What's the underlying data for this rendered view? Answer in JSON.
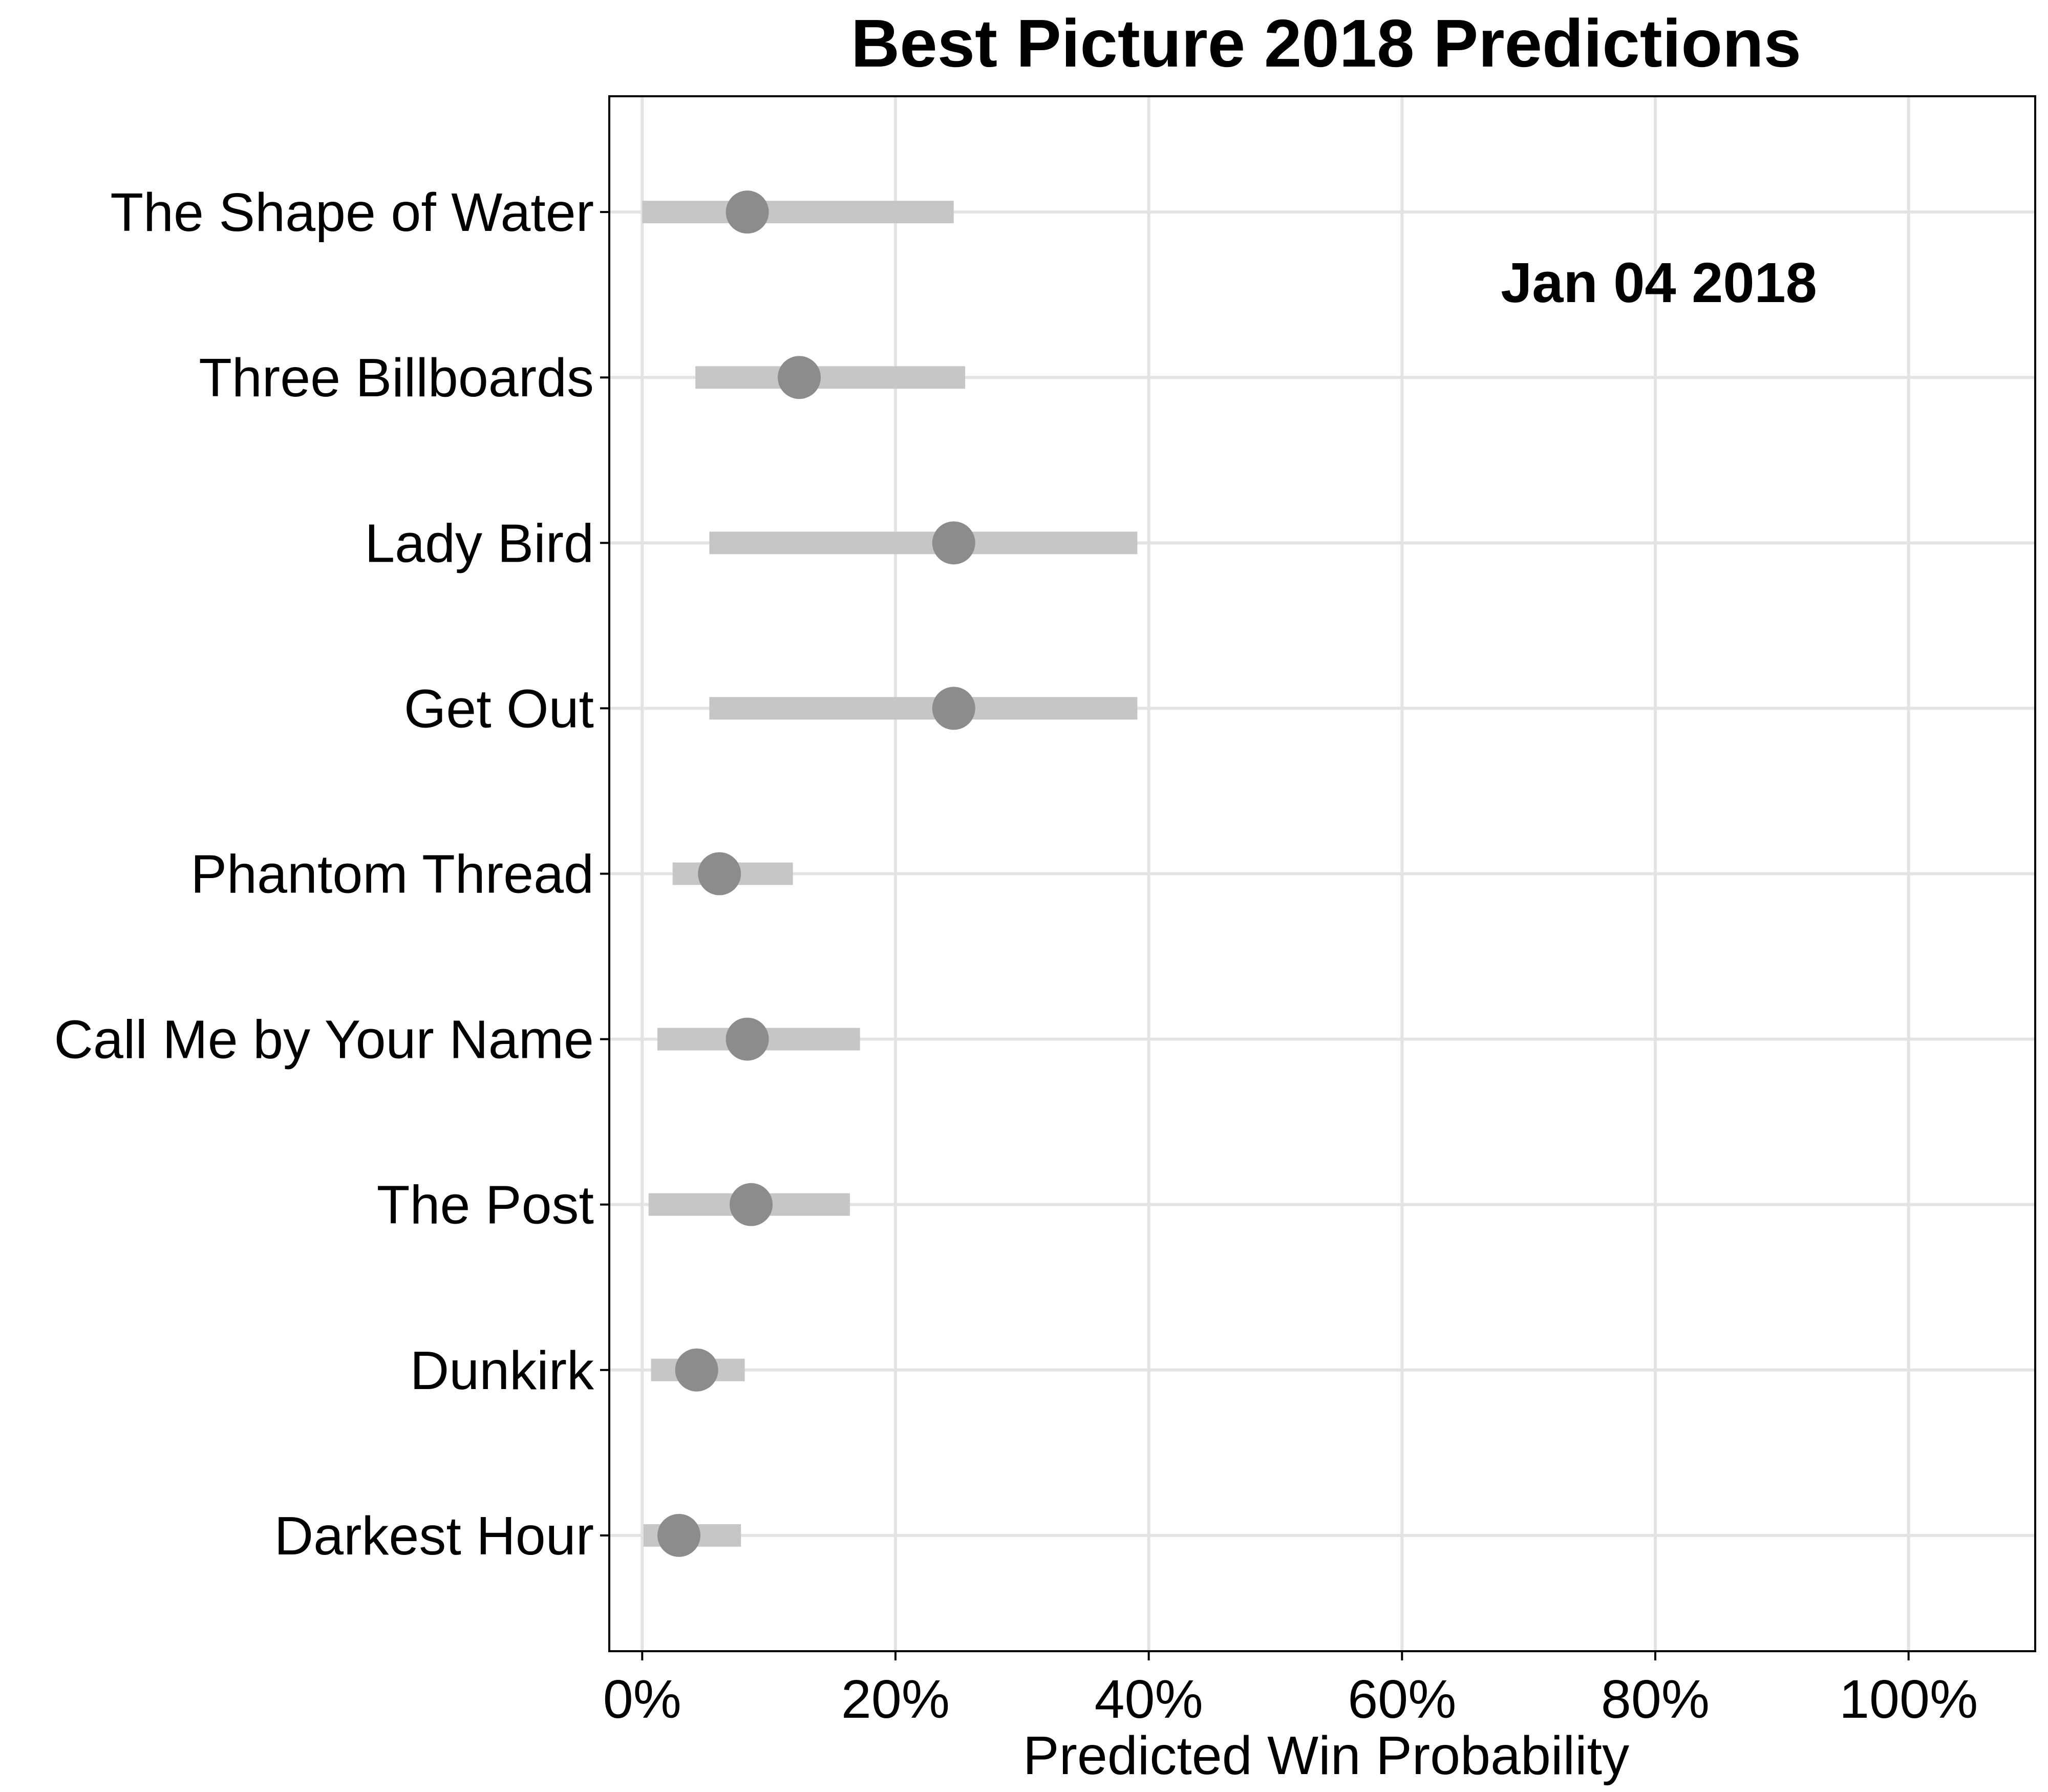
{
  "chart_data": {
    "type": "scatter",
    "title": "Best Picture 2018 Predictions",
    "xlabel": "Predicted Win Probability",
    "ylabel": "",
    "xlim": [
      -0.026,
      1.1
    ],
    "x_ticks": [
      0,
      0.2,
      0.4,
      0.6,
      0.8,
      1.0
    ],
    "x_tick_labels": [
      "0%",
      "20%",
      "40%",
      "60%",
      "80%",
      "100%"
    ],
    "grid": true,
    "legend": "none",
    "annotation": "Jan 04 2018",
    "colors": {
      "point": "#8c8c8c",
      "interval": "#c6c6c6",
      "grid": "#e3e3e3",
      "axis": "#000000"
    },
    "categories": [
      "The Shape of Water",
      "Three Billboards",
      "Lady Bird",
      "Get Out",
      "Phantom Thread",
      "Call Me by Your Name",
      "The Post",
      "Dunkirk",
      "Darkest Hour"
    ],
    "series": [
      {
        "values": [
          0.083,
          0.124,
          0.246,
          0.246,
          0.061,
          0.083,
          0.086,
          0.043,
          0.029
        ],
        "lower": [
          0.0,
          0.042,
          0.053,
          0.053,
          0.024,
          0.012,
          0.005,
          0.007,
          0.001
        ],
        "upper": [
          0.246,
          0.255,
          0.391,
          0.391,
          0.119,
          0.172,
          0.164,
          0.081,
          0.078
        ]
      }
    ]
  }
}
